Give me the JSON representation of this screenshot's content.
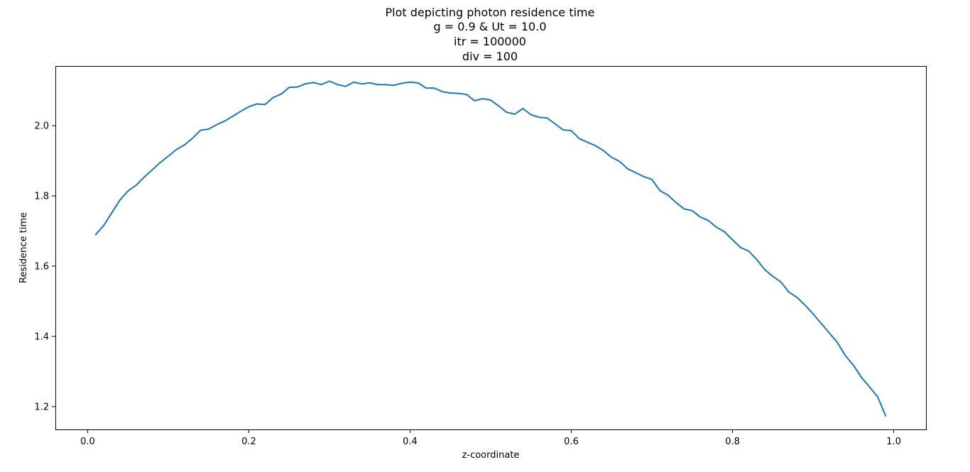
{
  "chart_data": {
    "type": "line",
    "title_lines": [
      "Plot depicting photon residence time",
      "g = 0.9 & Ut = 10.0",
      "itr = 100000",
      "div = 100"
    ],
    "xlabel": "z-coordinate",
    "ylabel": "Residence time",
    "xlim": [
      -0.04,
      1.04
    ],
    "ylim": [
      1.135,
      2.17
    ],
    "xticks": [
      0.0,
      0.2,
      0.4,
      0.6,
      0.8,
      1.0
    ],
    "xtick_labels": [
      "0.0",
      "0.2",
      "0.4",
      "0.6",
      "0.8",
      "1.0"
    ],
    "yticks": [
      1.2,
      1.4,
      1.6,
      1.8,
      2.0
    ],
    "ytick_labels": [
      "1.2",
      "1.4",
      "1.6",
      "1.8",
      "2.0"
    ],
    "grid": false,
    "series": [
      {
        "color": "#1f77b4",
        "x": [
          0.01,
          0.02,
          0.03,
          0.04,
          0.05,
          0.06,
          0.07,
          0.08,
          0.09,
          0.1,
          0.11,
          0.12,
          0.13,
          0.14,
          0.15,
          0.16,
          0.17,
          0.18,
          0.19,
          0.2,
          0.21,
          0.22,
          0.23,
          0.24,
          0.25,
          0.26,
          0.27,
          0.28,
          0.29,
          0.3,
          0.31,
          0.32,
          0.33,
          0.34,
          0.35,
          0.36,
          0.37,
          0.38,
          0.39,
          0.4,
          0.41,
          0.42,
          0.43,
          0.44,
          0.45,
          0.46,
          0.47,
          0.48,
          0.49,
          0.5,
          0.51,
          0.52,
          0.53,
          0.54,
          0.55,
          0.56,
          0.57,
          0.58,
          0.59,
          0.6,
          0.61,
          0.62,
          0.63,
          0.64,
          0.65,
          0.66,
          0.67,
          0.68,
          0.69,
          0.7,
          0.71,
          0.72,
          0.73,
          0.74,
          0.75,
          0.76,
          0.77,
          0.78,
          0.79,
          0.8,
          0.81,
          0.82,
          0.83,
          0.84,
          0.85,
          0.86,
          0.87,
          0.88,
          0.89,
          0.9,
          0.91,
          0.92,
          0.93,
          0.94,
          0.95,
          0.96,
          0.97,
          0.98,
          0.99
        ],
        "y": [
          1.69,
          1.716,
          1.752,
          1.788,
          1.814,
          1.83,
          1.853,
          1.874,
          1.895,
          1.913,
          1.932,
          1.945,
          1.964,
          1.987,
          1.99,
          2.003,
          2.013,
          2.027,
          2.041,
          2.054,
          2.062,
          2.06,
          2.08,
          2.09,
          2.109,
          2.11,
          2.119,
          2.123,
          2.117,
          2.127,
          2.117,
          2.112,
          2.124,
          2.119,
          2.122,
          2.117,
          2.117,
          2.115,
          2.121,
          2.124,
          2.122,
          2.107,
          2.107,
          2.097,
          2.093,
          2.092,
          2.089,
          2.071,
          2.077,
          2.073,
          2.056,
          2.038,
          2.033,
          2.049,
          2.031,
          2.024,
          2.022,
          2.005,
          1.988,
          1.986,
          1.963,
          1.953,
          1.943,
          1.929,
          1.91,
          1.898,
          1.877,
          1.866,
          1.855,
          1.847,
          1.815,
          1.802,
          1.781,
          1.763,
          1.758,
          1.74,
          1.73,
          1.711,
          1.698,
          1.675,
          1.653,
          1.643,
          1.619,
          1.59,
          1.571,
          1.555,
          1.526,
          1.511,
          1.489,
          1.464,
          1.437,
          1.41,
          1.383,
          1.345,
          1.318,
          1.283,
          1.256,
          1.228,
          1.174
        ]
      }
    ]
  }
}
